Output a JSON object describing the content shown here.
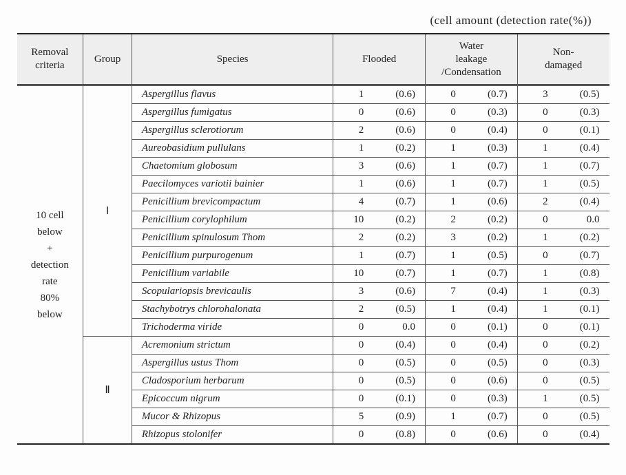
{
  "caption": "(cell amount (detection rate(%))",
  "headers": {
    "removal": "Removal\ncriteria",
    "group": "Group",
    "species": "Species",
    "flooded": "Flooded",
    "water": "Water\nleakage\n/Condensation",
    "non": "Non-\ndamaged"
  },
  "removal_label": "10 cell\nbelow\n+\ndetection\nrate\n80%\nbelow",
  "groups": [
    {
      "label": "Ⅰ",
      "rows": [
        {
          "species": "Aspergillus  flavus",
          "f_n": "1",
          "f_r": "(0.6)",
          "w_n": "0",
          "w_r": "(0.7)",
          "n_n": "3",
          "n_r": "(0.5)"
        },
        {
          "species": "Aspergillus fumigatus",
          "f_n": "0",
          "f_r": "(0.6)",
          "w_n": "0",
          "w_r": "(0.3)",
          "n_n": "0",
          "n_r": "(0.3)"
        },
        {
          "species": "Aspergillus sclerotiorum",
          "f_n": "2",
          "f_r": "(0.6)",
          "w_n": "0",
          "w_r": "(0.4)",
          "n_n": "0",
          "n_r": "(0.1)"
        },
        {
          "species": "Aureobasidium pullulans",
          "f_n": "1",
          "f_r": "(0.2)",
          "w_n": "1",
          "w_r": "(0.3)",
          "n_n": "1",
          "n_r": "(0.4)"
        },
        {
          "species": "Chaetomium globosum",
          "f_n": "3",
          "f_r": "(0.6)",
          "w_n": "1",
          "w_r": "(0.7)",
          "n_n": "1",
          "n_r": "(0.7)"
        },
        {
          "species": "Paecilomyces variotii bainier",
          "f_n": "1",
          "f_r": "(0.6)",
          "w_n": "1",
          "w_r": "(0.7)",
          "n_n": "1",
          "n_r": "(0.5)"
        },
        {
          "species": "Penicillium brevicompactum",
          "f_n": "4",
          "f_r": "(0.7)",
          "w_n": "1",
          "w_r": "(0.6)",
          "n_n": "2",
          "n_r": "(0.4)"
        },
        {
          "species": "Penicillium corylophilum",
          "f_n": "10",
          "f_r": "(0.2)",
          "w_n": "2",
          "w_r": "(0.2)",
          "n_n": "0",
          "n_r": "0.0"
        },
        {
          "species": "Penicillium spinulosum Thom",
          "f_n": "2",
          "f_r": "(0.2)",
          "w_n": "3",
          "w_r": "(0.2)",
          "n_n": "1",
          "n_r": "(0.2)"
        },
        {
          "species": "Penicillium purpurogenum",
          "f_n": "1",
          "f_r": "(0.7)",
          "w_n": "1",
          "w_r": "(0.5)",
          "n_n": "0",
          "n_r": "(0.7)"
        },
        {
          "species": "Penicillium variabile",
          "f_n": "10",
          "f_r": "(0.7)",
          "w_n": "1",
          "w_r": "(0.7)",
          "n_n": "1",
          "n_r": "(0.8)"
        },
        {
          "species": "Scopulariopsis brevicaulis",
          "f_n": "3",
          "f_r": "(0.6)",
          "w_n": "7",
          "w_r": "(0.4)",
          "n_n": "1",
          "n_r": "(0.3)"
        },
        {
          "species": "Stachybotrys chlorohalonata",
          "f_n": "2",
          "f_r": "(0.5)",
          "w_n": "1",
          "w_r": "(0.4)",
          "n_n": "1",
          "n_r": "(0.1)"
        },
        {
          "species": "Trichoderma viride",
          "f_n": "0",
          "f_r": "0.0",
          "w_n": "0",
          "w_r": "(0.1)",
          "n_n": "0",
          "n_r": "(0.1)"
        }
      ]
    },
    {
      "label": "Ⅱ",
      "rows": [
        {
          "species": "Acremonium  strictum",
          "f_n": "0",
          "f_r": "(0.4)",
          "w_n": "0",
          "w_r": "(0.4)",
          "n_n": "0",
          "n_r": "(0.2)"
        },
        {
          "species": "Aspergillus ustus Thom",
          "f_n": "0",
          "f_r": "(0.5)",
          "w_n": "0",
          "w_r": "(0.5)",
          "n_n": "0",
          "n_r": "(0.3)"
        },
        {
          "species": "Cladosporium herbarum",
          "f_n": "0",
          "f_r": "(0.5)",
          "w_n": "0",
          "w_r": "(0.6)",
          "n_n": "0",
          "n_r": "(0.5)"
        },
        {
          "species": "Epicoccum nigrum",
          "f_n": "0",
          "f_r": "(0.1)",
          "w_n": "0",
          "w_r": "(0.3)",
          "n_n": "1",
          "n_r": "(0.5)"
        },
        {
          "species": "Mucor & Rhizopus",
          "f_n": "5",
          "f_r": "(0.9)",
          "w_n": "1",
          "w_r": "(0.7)",
          "n_n": "0",
          "n_r": "(0.5)"
        },
        {
          "species": "Rhizopus stolonifer",
          "f_n": "0",
          "f_r": "(0.8)",
          "w_n": "0",
          "w_r": "(0.6)",
          "n_n": "0",
          "n_r": "(0.4)"
        }
      ]
    }
  ]
}
